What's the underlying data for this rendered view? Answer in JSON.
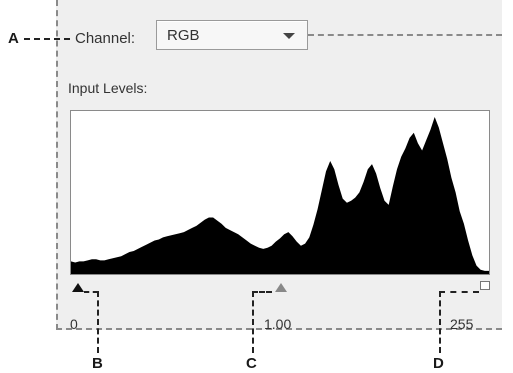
{
  "callouts": {
    "a": "A",
    "b": "B",
    "c": "C",
    "d": "D"
  },
  "channel": {
    "label": "Channel:",
    "value": "RGB"
  },
  "input_levels": {
    "label": "Input Levels:",
    "black_point": "0",
    "midtone": "1.00",
    "white_point": "255"
  },
  "histogram": {
    "fill_color": "#000000",
    "values": [
      12,
      11,
      12,
      12,
      13,
      14,
      14,
      13,
      13,
      14,
      15,
      16,
      17,
      19,
      21,
      22,
      24,
      26,
      28,
      30,
      32,
      33,
      35,
      36,
      37,
      38,
      39,
      40,
      42,
      44,
      46,
      49,
      52,
      54,
      54,
      51,
      48,
      44,
      42,
      40,
      38,
      35,
      32,
      29,
      27,
      25,
      24,
      25,
      27,
      31,
      34,
      38,
      40,
      36,
      31,
      27,
      29,
      35,
      47,
      62,
      80,
      98,
      108,
      100,
      85,
      72,
      68,
      70,
      73,
      78,
      88,
      100,
      105,
      96,
      82,
      70,
      66,
      84,
      100,
      112,
      120,
      130,
      135,
      125,
      118,
      128,
      138,
      150,
      140,
      125,
      110,
      92,
      78,
      60,
      48,
      32,
      18,
      8,
      4,
      3,
      3
    ]
  }
}
